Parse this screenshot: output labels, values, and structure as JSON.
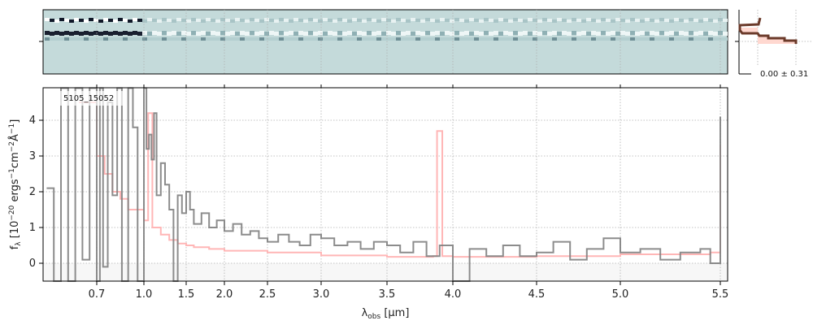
{
  "chart_data": {
    "type": "line",
    "object_label": "5105_15052",
    "xlabel": "λ_obs [μm]",
    "ylabel": "f_λ [10^-20 ergs^-1 cm^-2 Å^-1]",
    "xticks": [
      "0.7",
      "1.0",
      "1.5",
      "2.0",
      "2.5",
      "3.0",
      "3.5",
      "4.0",
      "4.5",
      "5.0",
      "5.5"
    ],
    "yticks": [
      "0",
      "1",
      "2",
      "3",
      "4"
    ],
    "xlim": [
      0.55,
      5.52
    ],
    "ylim": [
      -0.5,
      4.9
    ],
    "grid": true,
    "profile_label": "0.00 ± 0.31",
    "colors": {
      "data": "#808080",
      "model": "#ffb6b6",
      "twod_bg": "#c4dada",
      "profile": "#6b3a2a"
    },
    "series": [
      {
        "name": "data",
        "x": [
          0.56,
          0.58,
          0.6,
          0.62,
          0.64,
          0.66,
          0.68,
          0.7,
          0.72,
          0.74,
          0.77,
          0.8,
          0.83,
          0.86,
          0.9,
          0.93,
          0.96,
          1.0,
          1.03,
          1.06,
          1.09,
          1.12,
          1.15,
          1.2,
          1.25,
          1.3,
          1.35,
          1.4,
          1.45,
          1.5,
          1.55,
          1.6,
          1.7,
          1.8,
          1.9,
          2.0,
          2.1,
          2.2,
          2.3,
          2.4,
          2.5,
          2.6,
          2.7,
          2.8,
          2.9,
          3.0,
          3.1,
          3.2,
          3.3,
          3.4,
          3.5,
          3.6,
          3.7,
          3.8,
          3.9,
          4.0,
          4.1,
          4.2,
          4.3,
          4.4,
          4.5,
          4.6,
          4.7,
          4.8,
          4.9,
          5.0,
          5.1,
          5.2,
          5.3,
          5.4,
          5.45,
          5.5
        ],
        "y": [
          2.1,
          -0.5,
          5,
          -0.5,
          5,
          0.1,
          5,
          -0.5,
          5,
          -0.1,
          4.5,
          1.9,
          5,
          -0.5,
          5,
          3.8,
          -0.5,
          5,
          3.2,
          3.6,
          2.9,
          4.2,
          1.9,
          2.8,
          2.2,
          1.5,
          -0.5,
          1.9,
          1.4,
          2.0,
          1.5,
          1.1,
          1.4,
          1.0,
          1.2,
          0.9,
          1.1,
          0.8,
          0.9,
          0.7,
          0.6,
          0.8,
          0.6,
          0.5,
          0.8,
          0.7,
          0.5,
          0.6,
          0.4,
          0.6,
          0.5,
          0.3,
          0.6,
          0.2,
          0.5,
          -0.5,
          0.4,
          0.2,
          0.5,
          0.2,
          0.3,
          0.6,
          0.1,
          0.4,
          0.7,
          0.3,
          0.4,
          0.1,
          0.3,
          0.4,
          0.0,
          4.1
        ]
      },
      {
        "name": "model",
        "x": [
          0.65,
          0.7,
          0.75,
          0.8,
          0.85,
          0.9,
          1.0,
          1.05,
          1.1,
          1.2,
          1.3,
          1.4,
          1.5,
          1.6,
          1.8,
          2.0,
          2.5,
          3.0,
          3.5,
          3.85,
          3.88,
          3.92,
          4.0,
          4.5,
          5.0,
          5.3,
          5.45,
          5.5
        ],
        "y": [
          4.5,
          3.0,
          2.5,
          2.0,
          1.8,
          1.5,
          1.2,
          4.2,
          1.0,
          0.8,
          0.65,
          0.55,
          0.5,
          0.45,
          0.4,
          0.35,
          0.3,
          0.22,
          0.18,
          0.2,
          3.7,
          0.2,
          0.18,
          0.2,
          0.25,
          0.25,
          0.3,
          3.3
        ]
      }
    ]
  }
}
